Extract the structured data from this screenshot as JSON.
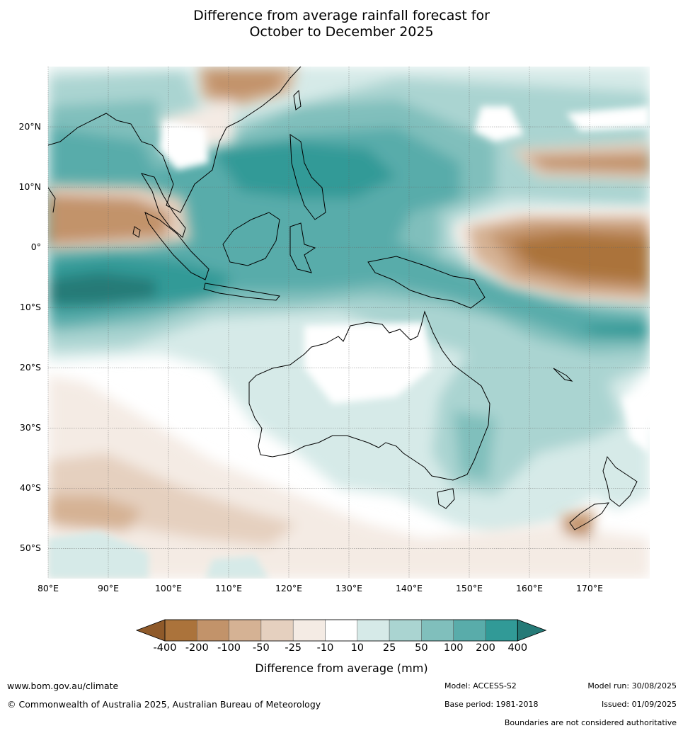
{
  "title": {
    "line1": "Difference from average rainfall forecast for",
    "line2": "October to December 2025"
  },
  "map": {
    "projection": "equirectangular",
    "lon_range": [
      80,
      180
    ],
    "lat_range": [
      -55,
      30
    ],
    "lon_ticks": [
      "80°E",
      "90°E",
      "100°E",
      "110°E",
      "120°E",
      "130°E",
      "140°E",
      "150°E",
      "160°E",
      "170°E"
    ],
    "lat_ticks": [
      "20°N",
      "10°N",
      "0°",
      "10°S",
      "20°S",
      "30°S",
      "40°S",
      "50°S"
    ],
    "gridlines": true
  },
  "legend": {
    "title": "Difference from average (mm)",
    "labels": [
      "-400",
      "-200",
      "-100",
      "-50",
      "-25",
      "-10",
      "10",
      "25",
      "50",
      "100",
      "200",
      "400"
    ],
    "colors": [
      "#8f5a2a",
      "#ab733b",
      "#c2936a",
      "#d5b294",
      "#e5d0bf",
      "#f4ebe4",
      "#ffffff",
      "#d6eae8",
      "#aad4d1",
      "#80bfbc",
      "#59acaa",
      "#319a97",
      "#257a77"
    ]
  },
  "footer": {
    "url": "www.bom.gov.au/climate",
    "copyright": "© Commonwealth of Australia 2025, Australian Bureau of Meteorology",
    "model": "Model: ACCESS-S2",
    "base_period": "Base period: 1981-2018",
    "model_run": "Model run: 30/08/2025",
    "issued": "Issued: 01/09/2025",
    "disclaimer": "Boundaries are not considered authoritative"
  }
}
